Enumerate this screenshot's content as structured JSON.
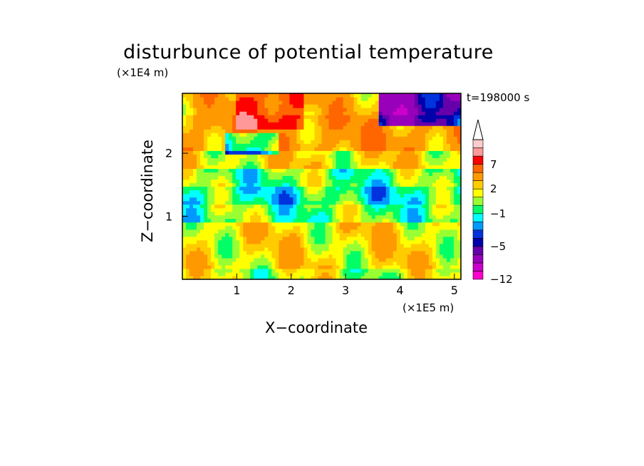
{
  "chart_data": {
    "type": "heatmap",
    "title": "disturbunce of potential temperature",
    "xlabel": "X−coordinate",
    "ylabel": "Z−coordinate",
    "x_scale_label": "(×1E5 m)",
    "y_scale_label": "(×1E4 m)",
    "time_label": "t=198000 s",
    "xlim": [
      0,
      5.12
    ],
    "ylim": [
      0,
      2.95
    ],
    "x_ticks": [
      1,
      2,
      3,
      4,
      5
    ],
    "y_ticks": [
      1,
      2
    ],
    "grid": false,
    "colorbar": {
      "levels": [
        -12,
        -10,
        -8,
        -6,
        -5,
        -4,
        -3,
        -2,
        -1,
        0,
        1,
        2,
        3,
        5,
        7,
        9,
        11
      ],
      "tick_labels": [
        "7",
        "2",
        "−1",
        "−5",
        "−12"
      ],
      "tick_values": [
        7,
        2,
        -1,
        -5,
        -12
      ],
      "colors": [
        "#ff00cc",
        "#cc00cc",
        "#9900bb",
        "#6600aa",
        "#0000aa",
        "#0033dd",
        "#0099ff",
        "#00ffff",
        "#00ff66",
        "#99ff33",
        "#ffff00",
        "#ffcc00",
        "#ff9900",
        "#ff6600",
        "#ff0000",
        "#ff9999",
        "#ffcccc"
      ],
      "extend": "max"
    },
    "bands": [
      {
        "z_range": [
          0.0,
          0.15
        ],
        "level": 1
      },
      {
        "z_range": [
          0.15,
          0.9
        ],
        "level": 2
      },
      {
        "z_range": [
          0.9,
          1.2
        ],
        "level": 0
      },
      {
        "z_range": [
          1.2,
          1.45
        ],
        "level": -1
      },
      {
        "z_range": [
          1.45,
          1.75
        ],
        "level": 0
      },
      {
        "z_range": [
          1.75,
          2.05
        ],
        "level": 2
      },
      {
        "z_range": [
          2.05,
          2.6
        ],
        "level": 4
      },
      {
        "z_range": [
          2.6,
          2.95
        ],
        "level": 3
      }
    ]
  }
}
